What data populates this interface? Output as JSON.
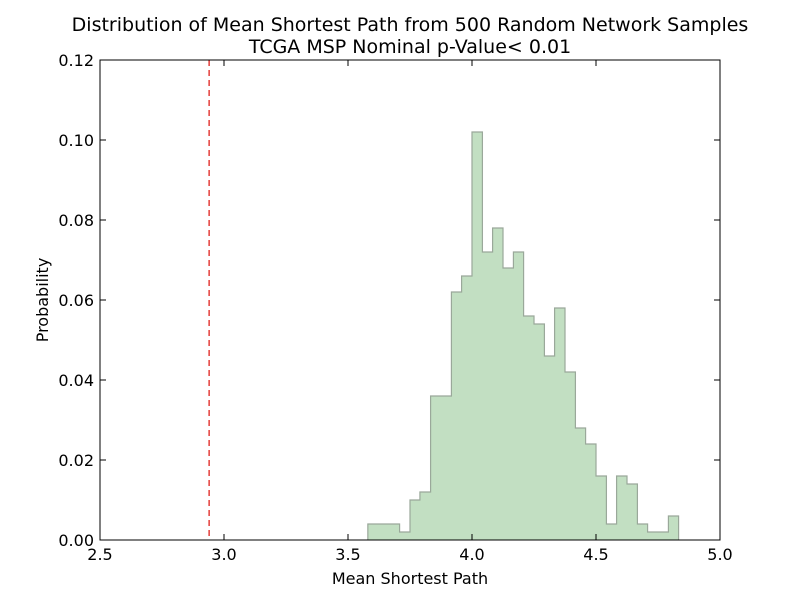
{
  "chart_data": {
    "type": "histogram",
    "title": "Distribution of Mean Shortest Path from 500 Random Network Samples",
    "subtitle": "TCGA MSP Nominal p-Value< 0.01",
    "xlabel": "Mean Shortest Path",
    "ylabel": "Probability",
    "xlim": [
      2.5,
      5.0
    ],
    "ylim": [
      0.0,
      0.12
    ],
    "x_ticks": [
      2.5,
      3.0,
      3.5,
      4.0,
      4.5,
      5.0
    ],
    "x_tick_labels": [
      "2.5",
      "3.0",
      "3.5",
      "4.0",
      "4.5",
      "5.0"
    ],
    "y_ticks": [
      0.0,
      0.02,
      0.04,
      0.06,
      0.08,
      0.1,
      0.12
    ],
    "y_tick_labels": [
      "0.00",
      "0.02",
      "0.04",
      "0.06",
      "0.08",
      "0.10",
      "0.12"
    ],
    "grid": false,
    "fill_color": "#c2dfc2",
    "edge_color": "#9aa89a",
    "reference_line": {
      "x": 2.94,
      "color": "#e0201c",
      "style": "dashed"
    },
    "bins": [
      {
        "x0": 3.58,
        "x1": 3.708,
        "y": 0.004
      },
      {
        "x0": 3.708,
        "x1": 3.75,
        "y": 0.002
      },
      {
        "x0": 3.75,
        "x1": 3.79,
        "y": 0.01
      },
      {
        "x0": 3.79,
        "x1": 3.833,
        "y": 0.012
      },
      {
        "x0": 3.833,
        "x1": 3.917,
        "y": 0.036
      },
      {
        "x0": 3.917,
        "x1": 3.958,
        "y": 0.062
      },
      {
        "x0": 3.958,
        "x1": 4.0,
        "y": 0.066
      },
      {
        "x0": 4.0,
        "x1": 4.042,
        "y": 0.102
      },
      {
        "x0": 4.042,
        "x1": 4.083,
        "y": 0.072
      },
      {
        "x0": 4.083,
        "x1": 4.125,
        "y": 0.078
      },
      {
        "x0": 4.125,
        "x1": 4.167,
        "y": 0.068
      },
      {
        "x0": 4.167,
        "x1": 4.208,
        "y": 0.072
      },
      {
        "x0": 4.208,
        "x1": 4.25,
        "y": 0.056
      },
      {
        "x0": 4.25,
        "x1": 4.292,
        "y": 0.054
      },
      {
        "x0": 4.292,
        "x1": 4.333,
        "y": 0.046
      },
      {
        "x0": 4.333,
        "x1": 4.375,
        "y": 0.058
      },
      {
        "x0": 4.375,
        "x1": 4.417,
        "y": 0.042
      },
      {
        "x0": 4.417,
        "x1": 4.458,
        "y": 0.028
      },
      {
        "x0": 4.458,
        "x1": 4.5,
        "y": 0.024
      },
      {
        "x0": 4.5,
        "x1": 4.542,
        "y": 0.016
      },
      {
        "x0": 4.542,
        "x1": 4.583,
        "y": 0.004
      },
      {
        "x0": 4.583,
        "x1": 4.625,
        "y": 0.016
      },
      {
        "x0": 4.625,
        "x1": 4.667,
        "y": 0.014
      },
      {
        "x0": 4.667,
        "x1": 4.708,
        "y": 0.004
      },
      {
        "x0": 4.708,
        "x1": 4.792,
        "y": 0.002
      },
      {
        "x0": 4.792,
        "x1": 4.833,
        "y": 0.006
      }
    ]
  }
}
